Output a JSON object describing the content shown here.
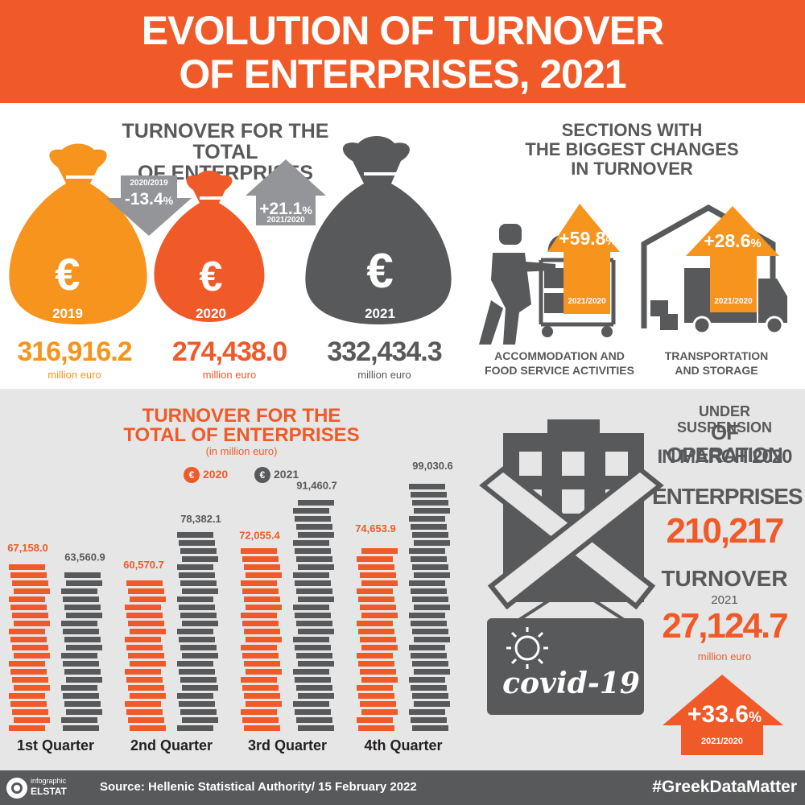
{
  "header": {
    "line1": "EVOLUTION OF TURNOVER",
    "line2": "OF ENTERPRISES, 2021"
  },
  "total": {
    "title1": "TURNOVER FOR THE TOTAL",
    "title2": "OF ENTERPRISES",
    "bags": [
      {
        "year": "2019",
        "value": "316,916.2",
        "unit": "million euro",
        "color": "#f7941d"
      },
      {
        "year": "2020",
        "value": "274,438.0",
        "unit": "million euro",
        "color": "#f05a28"
      },
      {
        "year": "2021",
        "value": "332,434.3",
        "unit": "million euro",
        "color": "#58595b"
      }
    ],
    "change1": {
      "period": "2020/2019",
      "value": "-13.4",
      "pct": "%"
    },
    "change2": {
      "period": "2021/2020",
      "value": "+21.1",
      "pct": "%"
    },
    "euro": "€"
  },
  "sections": {
    "title1": "SECTIONS WITH",
    "title2": "THE BIGGEST CHANGES",
    "title3": "IN TURNOVER",
    "items": [
      {
        "value": "+59.8",
        "pct": "%",
        "period": "2021/2020",
        "label1": "ACCOMMODATION AND",
        "label2": "FOOD SERVICE ACTIVITIES"
      },
      {
        "value": "+28.6",
        "pct": "%",
        "period": "2021/2020",
        "label1": "TRANSPORTATION",
        "label2": "AND STORAGE"
      }
    ]
  },
  "quarters": {
    "title1": "TURNOVER FOR THE",
    "title2": "TOTAL OF ENTERPRISES",
    "subtitle": "(in million euro)",
    "legend": [
      {
        "label": "2020",
        "color": "#f05a28"
      },
      {
        "label": "2021",
        "color": "#58595b"
      }
    ]
  },
  "chart_data": {
    "type": "bar",
    "title": "TURNOVER FOR THE TOTAL OF ENTERPRISES",
    "subtitle": "(in million euro)",
    "categories": [
      "1st Quarter",
      "2nd Quarter",
      "3rd Quarter",
      "4th Quarter"
    ],
    "series": [
      {
        "name": "2020",
        "color": "#f05a28",
        "values": [
          67158.0,
          60570.7,
          72055.4,
          74653.9
        ],
        "labels": [
          "67,158.0",
          "60,570.7",
          "72,055.4",
          "74,653.9"
        ]
      },
      {
        "name": "2021",
        "color": "#58595b",
        "values": [
          63560.9,
          78382.1,
          91460.7,
          99030.6
        ],
        "labels": [
          "63,560.9",
          "78,382.1",
          "91,460.7",
          "99,030.6"
        ]
      }
    ],
    "ylim": [
      0,
      100000
    ],
    "legend": "top",
    "grid": false
  },
  "covid": {
    "line1": "UNDER SUSPENSION",
    "line2": "OF OPERATION",
    "line3": "IN MARCH 2020",
    "ent_label": "ENTERPRISES",
    "ent_value": "210,217",
    "turn_label": "TURNOVER",
    "turn_year": "2021",
    "turn_value": "27,124.7",
    "turn_unit": "million euro",
    "change": {
      "value": "+33.6",
      "pct": "%",
      "period": "2021/2020"
    },
    "sign": "covid-19"
  },
  "footer": {
    "logo1": "infographic",
    "logo2": "ELSTAT",
    "source": "Source: Hellenic Statistical Authority/ 15 February 2022",
    "hashtag": "#GreekDataMatter"
  }
}
